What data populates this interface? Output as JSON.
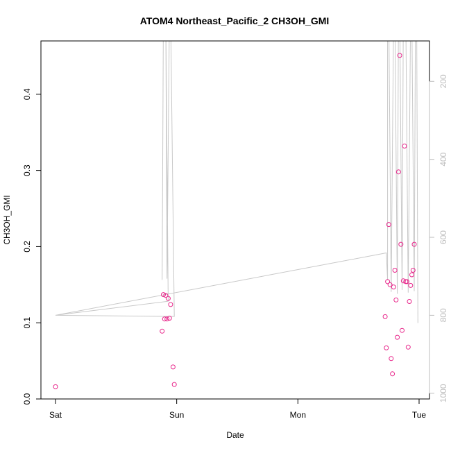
{
  "chart_data": {
    "type": "scatter",
    "title": "ATOM4 Northeast_Pacific_2 CH3OH_GMI",
    "xlabel": "Date",
    "ylabel": "CH3OH_GMI",
    "x_ticks": [
      "Sat",
      "Sun",
      "Mon",
      "Tue"
    ],
    "xlim": [
      0,
      3.03
    ],
    "ylim": [
      0,
      0.47
    ],
    "y_ticks": [
      "0.0",
      "0.1",
      "0.2",
      "0.3",
      "0.4"
    ],
    "y2_ticks": [
      "200",
      "400",
      "600",
      "800",
      "1000"
    ],
    "y2lim_top_to_bottom": [
      50,
      1020
    ],
    "grid": false,
    "colors": {
      "points": "#e8258a",
      "line": "#c8c8c8",
      "axis": "#000000",
      "right_axis": "#bdbdbd"
    },
    "points": [
      {
        "x": 0.0,
        "y": 0.016
      },
      {
        "x": 0.88,
        "y": 0.089
      },
      {
        "x": 0.89,
        "y": 0.137
      },
      {
        "x": 0.9,
        "y": 0.105
      },
      {
        "x": 0.91,
        "y": 0.136
      },
      {
        "x": 0.92,
        "y": 0.105
      },
      {
        "x": 0.93,
        "y": 0.132
      },
      {
        "x": 0.94,
        "y": 0.106
      },
      {
        "x": 0.95,
        "y": 0.124
      },
      {
        "x": 0.97,
        "y": 0.042
      },
      {
        "x": 0.98,
        "y": 0.019
      },
      {
        "x": 2.72,
        "y": 0.108
      },
      {
        "x": 2.73,
        "y": 0.067
      },
      {
        "x": 2.74,
        "y": 0.154
      },
      {
        "x": 2.75,
        "y": 0.229
      },
      {
        "x": 2.76,
        "y": 0.15
      },
      {
        "x": 2.77,
        "y": 0.053
      },
      {
        "x": 2.78,
        "y": 0.033
      },
      {
        "x": 2.79,
        "y": 0.147
      },
      {
        "x": 2.8,
        "y": 0.169
      },
      {
        "x": 2.81,
        "y": 0.13
      },
      {
        "x": 2.82,
        "y": 0.081
      },
      {
        "x": 2.83,
        "y": 0.298
      },
      {
        "x": 2.84,
        "y": 0.451
      },
      {
        "x": 2.85,
        "y": 0.203
      },
      {
        "x": 2.86,
        "y": 0.09
      },
      {
        "x": 2.87,
        "y": 0.155
      },
      {
        "x": 2.88,
        "y": 0.332
      },
      {
        "x": 2.89,
        "y": 0.154
      },
      {
        "x": 2.9,
        "y": 0.154
      },
      {
        "x": 2.91,
        "y": 0.068
      },
      {
        "x": 2.92,
        "y": 0.128
      },
      {
        "x": 2.93,
        "y": 0.149
      },
      {
        "x": 2.94,
        "y": 0.163
      },
      {
        "x": 2.95,
        "y": 0.169
      },
      {
        "x": 2.96,
        "y": 0.203
      }
    ],
    "line": [
      {
        "x": 0.0,
        "y": 800
      },
      {
        "x": 0.98,
        "y": 803
      },
      {
        "x": 0.95,
        "y": 0
      },
      {
        "x": 0.94,
        "y": 0
      },
      {
        "x": 0.92,
        "y": 706
      },
      {
        "x": 0.91,
        "y": 0
      },
      {
        "x": 0.89,
        "y": 0
      },
      {
        "x": 0.88,
        "y": 709
      },
      {
        "x": 0.89,
        "y": 0
      },
      {
        "x": 0.91,
        "y": 0
      },
      {
        "x": 0.93,
        "y": 764
      },
      {
        "x": 0.0,
        "y": 800
      },
      {
        "x": 2.73,
        "y": 640
      },
      {
        "x": 2.74,
        "y": 710
      },
      {
        "x": 2.74,
        "y": 0
      },
      {
        "x": 2.75,
        "y": 0
      },
      {
        "x": 2.77,
        "y": 740
      },
      {
        "x": 2.79,
        "y": 0
      },
      {
        "x": 2.8,
        "y": 0
      },
      {
        "x": 2.82,
        "y": 745
      },
      {
        "x": 2.83,
        "y": 0
      },
      {
        "x": 2.84,
        "y": 0
      },
      {
        "x": 2.86,
        "y": 735
      },
      {
        "x": 2.87,
        "y": 0
      },
      {
        "x": 2.89,
        "y": 0
      },
      {
        "x": 2.91,
        "y": 742
      },
      {
        "x": 2.93,
        "y": 0
      },
      {
        "x": 2.94,
        "y": 0
      },
      {
        "x": 2.96,
        "y": 738
      },
      {
        "x": 2.97,
        "y": 0
      },
      {
        "x": 2.98,
        "y": 0
      },
      {
        "x": 2.99,
        "y": 820
      }
    ]
  }
}
